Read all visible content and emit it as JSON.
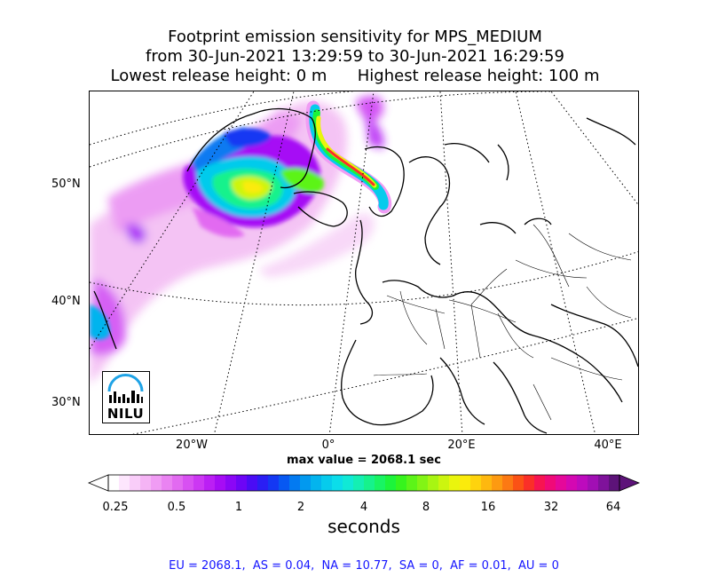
{
  "title": {
    "line1": "Footprint emission sensitivity for MPS_MEDIUM",
    "line2": "from 30-Jun-2021 13:29:59 to 30-Jun-2021 16:29:59",
    "line3": "Lowest release height: 0 m      Highest release height: 100 m"
  },
  "map": {
    "lat_labels": [
      "50°N",
      "40°N",
      "30°N"
    ],
    "lon_labels": [
      "20°W",
      "0°",
      "20°E",
      "40°E"
    ],
    "logo": "NILU"
  },
  "max_value_text": "max value = 2068.1 sec",
  "colorbar": {
    "tick_labels": [
      "0.25",
      "0.5",
      "1",
      "2",
      "4",
      "8",
      "16",
      "32",
      "64"
    ],
    "unit_label": "seconds",
    "colors": [
      "#ffffff",
      "#fde6fd",
      "#f9cdf9",
      "#f5b4f5",
      "#f09cf4",
      "#ea83f2",
      "#e26af1",
      "#d850f2",
      "#cc37f3",
      "#bb1ff4",
      "#a60cf5",
      "#8b06f6",
      "#6d05f6",
      "#4a0cf5",
      "#2a1ef4",
      "#1438f3",
      "#0758f2",
      "#037af1",
      "#0299ef",
      "#03b4ee",
      "#06cbec",
      "#0bddea",
      "#10e9d6",
      "#14efb3",
      "#16f28c",
      "#18f463",
      "#1cf43b",
      "#36f41d",
      "#5cf418",
      "#82f415",
      "#a8f512",
      "#ccf50f",
      "#eaf50d",
      "#fbeb0c",
      "#fed30d",
      "#feb80f",
      "#fd9a11",
      "#fc7913",
      "#fb5215",
      "#fa2f28",
      "#f71451",
      "#f00a78",
      "#e5089a",
      "#d408b2",
      "#bd0bbd",
      "#a10fb4",
      "#7f129b",
      "#5d1379"
    ]
  },
  "stats_text": "EU = 2068.1,  AS = 0.04,  NA = 10.77,  SA = 0,  AF = 0.01,  AU = 0"
}
